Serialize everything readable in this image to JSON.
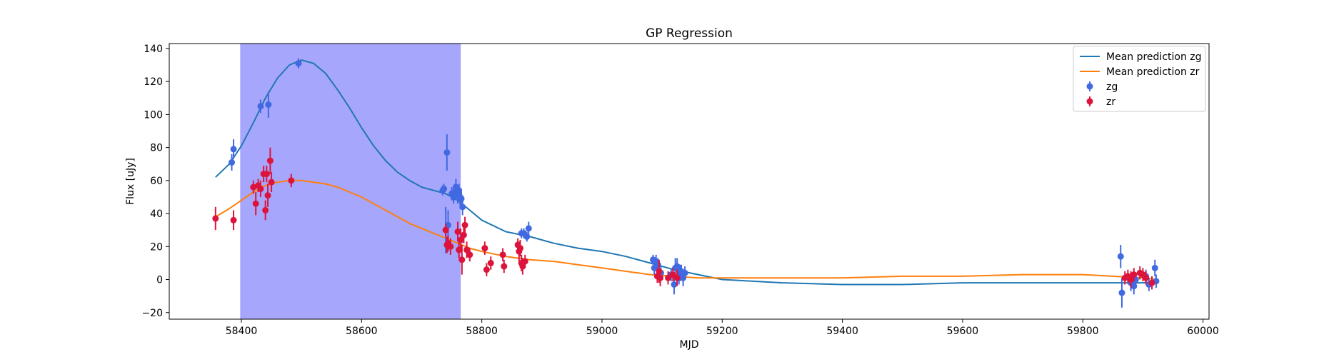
{
  "chart_data": {
    "type": "scatter",
    "title": "GP Regression",
    "xlabel": "MJD",
    "ylabel": "Flux [uJy]",
    "xlim": [
      58280,
      60010
    ],
    "ylim": [
      -24,
      143
    ],
    "xticks": [
      58400,
      58600,
      58800,
      59000,
      59200,
      59400,
      59600,
      59800,
      60000
    ],
    "yticks": [
      -20,
      0,
      20,
      40,
      60,
      80,
      100,
      120,
      140
    ],
    "grid": false,
    "legend_position": "top-right",
    "shaded_region": {
      "x_start": 58398,
      "x_end": 58765,
      "color": "#a6a6fc"
    },
    "series": [
      {
        "name": "Mean prediction zg",
        "kind": "line",
        "color": "#1f77b4",
        "x": [
          58357,
          58380,
          58400,
          58420,
          58440,
          58460,
          58480,
          58500,
          58520,
          58540,
          58560,
          58580,
          58600,
          58620,
          58640,
          58660,
          58680,
          58700,
          58720,
          58740,
          58760,
          58780,
          58800,
          58840,
          58880,
          58920,
          58960,
          59000,
          59040,
          59080,
          59120,
          59160,
          59200,
          59300,
          59400,
          59500,
          59600,
          59700,
          59800,
          59850,
          59900,
          59925
        ],
        "y": [
          62,
          70,
          81,
          95,
          110,
          122,
          130,
          133,
          131,
          125,
          115,
          104,
          92,
          81,
          72,
          65,
          60,
          56,
          54,
          52,
          48,
          42,
          36,
          29,
          26,
          22,
          19,
          17,
          14,
          10,
          6,
          3,
          0,
          -2,
          -3,
          -3,
          -2,
          -2,
          -2,
          -2,
          -2,
          -1
        ]
      },
      {
        "name": "Mean prediction zr",
        "kind": "line",
        "color": "#ff7f0e",
        "x": [
          58357,
          58380,
          58400,
          58420,
          58440,
          58460,
          58480,
          58500,
          58520,
          58540,
          58560,
          58580,
          58600,
          58620,
          58640,
          58660,
          58680,
          58700,
          58720,
          58740,
          58760,
          58780,
          58800,
          58840,
          58880,
          58920,
          58960,
          59000,
          59040,
          59080,
          59120,
          59160,
          59200,
          59300,
          59400,
          59500,
          59600,
          59700,
          59750,
          59800,
          59850,
          59900,
          59925
        ],
        "y": [
          38,
          43,
          48,
          53,
          57,
          59,
          60,
          60,
          59,
          58,
          56,
          53,
          50,
          46,
          42,
          38,
          34,
          31,
          28,
          25,
          22,
          19,
          17,
          14,
          12,
          11,
          9,
          7,
          5,
          3,
          2,
          1,
          1,
          1,
          1,
          2,
          2,
          3,
          3,
          3,
          2,
          1,
          0
        ]
      },
      {
        "name": "zg",
        "kind": "errorbar",
        "color": "#4169e1",
        "points": [
          [
            58384,
            71,
            5
          ],
          [
            58387,
            79,
            6
          ],
          [
            58432,
            105,
            4
          ],
          [
            58445,
            106,
            8
          ],
          [
            58495,
            131,
            3
          ],
          [
            58735,
            54,
            3
          ],
          [
            58737,
            55,
            3
          ],
          [
            58740,
            30,
            14
          ],
          [
            58742,
            77,
            11
          ],
          [
            58744,
            33,
            9
          ],
          [
            58750,
            52,
            4
          ],
          [
            58753,
            50,
            4
          ],
          [
            58755,
            53,
            5
          ],
          [
            58757,
            56,
            5
          ],
          [
            58760,
            51,
            5
          ],
          [
            58762,
            54,
            4
          ],
          [
            58764,
            50,
            5
          ],
          [
            58766,
            49,
            4
          ],
          [
            58768,
            44,
            5
          ],
          [
            58866,
            28,
            3
          ],
          [
            58870,
            28,
            3
          ],
          [
            58875,
            26,
            3
          ],
          [
            58878,
            31,
            4
          ],
          [
            59085,
            12,
            3
          ],
          [
            59087,
            7,
            4
          ],
          [
            59090,
            11,
            4
          ],
          [
            59093,
            9,
            4
          ],
          [
            59098,
            4,
            4
          ],
          [
            59115,
            3,
            4
          ],
          [
            59120,
            -3,
            6
          ],
          [
            59122,
            7,
            6
          ],
          [
            59125,
            8,
            5
          ],
          [
            59128,
            2,
            5
          ],
          [
            59130,
            4,
            5
          ],
          [
            59132,
            5,
            4
          ],
          [
            59135,
            1,
            5
          ],
          [
            59138,
            4,
            4
          ],
          [
            59863,
            14,
            7
          ],
          [
            59865,
            -8,
            9
          ],
          [
            59880,
            -2,
            5
          ],
          [
            59885,
            -4,
            5
          ],
          [
            59888,
            0,
            4
          ],
          [
            59905,
            2,
            4
          ],
          [
            59910,
            -3,
            4
          ],
          [
            59920,
            7,
            5
          ],
          [
            59922,
            -1,
            4
          ]
        ]
      },
      {
        "name": "zr",
        "kind": "errorbar",
        "color": "#dc143c",
        "points": [
          [
            58357,
            37,
            7
          ],
          [
            58387,
            36,
            6
          ],
          [
            58420,
            56,
            4
          ],
          [
            58424,
            46,
            7
          ],
          [
            58428,
            57,
            4
          ],
          [
            58432,
            55,
            5
          ],
          [
            58437,
            64,
            5
          ],
          [
            58440,
            42,
            6
          ],
          [
            58442,
            64,
            5
          ],
          [
            58444,
            51,
            7
          ],
          [
            58448,
            72,
            8
          ],
          [
            58450,
            59,
            6
          ],
          [
            58483,
            60,
            4
          ],
          [
            58740,
            30,
            4
          ],
          [
            58742,
            21,
            5
          ],
          [
            58744,
            22,
            5
          ],
          [
            58748,
            20,
            5
          ],
          [
            58760,
            29,
            6
          ],
          [
            58762,
            18,
            5
          ],
          [
            58765,
            24,
            7
          ],
          [
            58767,
            12,
            9
          ],
          [
            58770,
            27,
            5
          ],
          [
            58772,
            33,
            5
          ],
          [
            58775,
            18,
            5
          ],
          [
            58780,
            15,
            4
          ],
          [
            58805,
            19,
            4
          ],
          [
            58808,
            6,
            4
          ],
          [
            58815,
            10,
            4
          ],
          [
            58835,
            15,
            4
          ],
          [
            58837,
            8,
            4
          ],
          [
            58860,
            21,
            4
          ],
          [
            58862,
            17,
            6
          ],
          [
            58864,
            19,
            5
          ],
          [
            58866,
            10,
            5
          ],
          [
            58868,
            8,
            5
          ],
          [
            58872,
            11,
            4
          ],
          [
            59092,
            2,
            4
          ],
          [
            59095,
            5,
            7
          ],
          [
            59097,
            1,
            5
          ],
          [
            59110,
            1,
            4
          ],
          [
            59118,
            3,
            4
          ],
          [
            59125,
            1,
            5
          ],
          [
            59870,
            1,
            4
          ],
          [
            59875,
            2,
            4
          ],
          [
            59880,
            0,
            5
          ],
          [
            59885,
            3,
            4
          ],
          [
            59895,
            4,
            4
          ],
          [
            59900,
            3,
            4
          ],
          [
            59905,
            1,
            4
          ],
          [
            59915,
            -2,
            4
          ]
        ]
      }
    ]
  }
}
